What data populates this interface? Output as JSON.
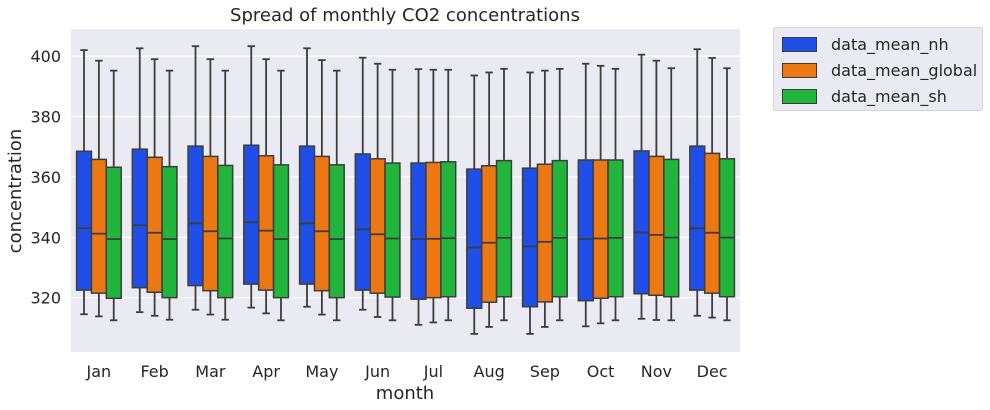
{
  "chart_data": {
    "type": "box",
    "title": "Spread of monthly CO2 concentrations",
    "xlabel": "month",
    "ylabel": "concentration",
    "ylim": [
      302,
      409
    ],
    "yticks": [
      320,
      340,
      360,
      380,
      400
    ],
    "grid": true,
    "legend_position": "outside-top-right",
    "categories": [
      "Jan",
      "Feb",
      "Mar",
      "Apr",
      "May",
      "Jun",
      "Jul",
      "Aug",
      "Sep",
      "Oct",
      "Nov",
      "Dec"
    ],
    "series": [
      {
        "name": "data_mean_nh",
        "color": "#1f4fe8",
        "boxes": [
          {
            "whislo": 314.5,
            "q1": 322.5,
            "med": 343.0,
            "q3": 368.5,
            "whishi": 402.0
          },
          {
            "whislo": 315.2,
            "q1": 323.3,
            "med": 344.0,
            "q3": 369.2,
            "whishi": 402.6
          },
          {
            "whislo": 316.0,
            "q1": 324.0,
            "med": 344.6,
            "q3": 370.2,
            "whishi": 403.3
          },
          {
            "whislo": 316.7,
            "q1": 324.5,
            "med": 345.0,
            "q3": 370.5,
            "whishi": 403.3
          },
          {
            "whislo": 317.0,
            "q1": 324.5,
            "med": 344.6,
            "q3": 370.2,
            "whishi": 402.6
          },
          {
            "whislo": 316.0,
            "q1": 322.5,
            "med": 342.6,
            "q3": 367.6,
            "whishi": 399.5
          },
          {
            "whislo": 311.0,
            "q1": 319.5,
            "med": 339.4,
            "q3": 364.6,
            "whishi": 395.7
          },
          {
            "whislo": 308.0,
            "q1": 316.5,
            "med": 336.6,
            "q3": 362.6,
            "whishi": 393.6
          },
          {
            "whislo": 308.0,
            "q1": 317.0,
            "med": 337.0,
            "q3": 362.9,
            "whishi": 394.6
          },
          {
            "whislo": 310.5,
            "q1": 319.0,
            "med": 339.4,
            "q3": 365.6,
            "whishi": 397.5
          },
          {
            "whislo": 313.0,
            "q1": 321.3,
            "med": 341.6,
            "q3": 368.6,
            "whishi": 400.5
          },
          {
            "whislo": 314.0,
            "q1": 322.5,
            "med": 343.0,
            "q3": 370.2,
            "whishi": 402.3
          }
        ]
      },
      {
        "name": "data_mean_global",
        "color": "#ec7814",
        "boxes": [
          {
            "whislo": 313.8,
            "q1": 321.5,
            "med": 341.2,
            "q3": 365.8,
            "whishi": 398.5
          },
          {
            "whislo": 314.0,
            "q1": 321.8,
            "med": 341.5,
            "q3": 366.5,
            "whishi": 399.0
          },
          {
            "whislo": 314.4,
            "q1": 322.3,
            "med": 342.0,
            "q3": 366.8,
            "whishi": 399.0
          },
          {
            "whislo": 314.8,
            "q1": 322.5,
            "med": 342.2,
            "q3": 367.0,
            "whishi": 399.0
          },
          {
            "whislo": 314.4,
            "q1": 322.3,
            "med": 342.0,
            "q3": 366.8,
            "whishi": 398.7
          },
          {
            "whislo": 313.6,
            "q1": 321.5,
            "med": 341.0,
            "q3": 366.0,
            "whishi": 397.5
          },
          {
            "whislo": 311.8,
            "q1": 320.0,
            "med": 339.5,
            "q3": 364.8,
            "whishi": 395.5
          },
          {
            "whislo": 310.3,
            "q1": 318.5,
            "med": 338.2,
            "q3": 363.7,
            "whishi": 394.6
          },
          {
            "whislo": 310.3,
            "q1": 318.6,
            "med": 338.5,
            "q3": 364.2,
            "whishi": 395.2
          },
          {
            "whislo": 311.5,
            "q1": 319.8,
            "med": 339.6,
            "q3": 365.6,
            "whishi": 396.8
          },
          {
            "whislo": 312.6,
            "q1": 320.8,
            "med": 340.8,
            "q3": 366.8,
            "whishi": 398.5
          },
          {
            "whislo": 313.4,
            "q1": 321.5,
            "med": 341.5,
            "q3": 367.8,
            "whishi": 399.4
          }
        ]
      },
      {
        "name": "data_mean_sh",
        "color": "#22b53c",
        "boxes": [
          {
            "whislo": 312.5,
            "q1": 319.8,
            "med": 339.4,
            "q3": 363.2,
            "whishi": 395.2
          },
          {
            "whislo": 312.7,
            "q1": 320.0,
            "med": 339.4,
            "q3": 363.4,
            "whishi": 395.2
          },
          {
            "whislo": 312.7,
            "q1": 320.0,
            "med": 339.6,
            "q3": 363.8,
            "whishi": 395.2
          },
          {
            "whislo": 312.5,
            "q1": 320.0,
            "med": 339.4,
            "q3": 364.0,
            "whishi": 395.2
          },
          {
            "whislo": 312.5,
            "q1": 320.0,
            "med": 339.4,
            "q3": 364.0,
            "whishi": 395.2
          },
          {
            "whislo": 312.5,
            "q1": 320.2,
            "med": 339.6,
            "q3": 364.6,
            "whishi": 395.5
          },
          {
            "whislo": 312.5,
            "q1": 320.3,
            "med": 339.7,
            "q3": 365.0,
            "whishi": 395.5
          },
          {
            "whislo": 312.5,
            "q1": 320.3,
            "med": 339.8,
            "q3": 365.4,
            "whishi": 395.8
          },
          {
            "whislo": 312.5,
            "q1": 320.3,
            "med": 339.8,
            "q3": 365.4,
            "whishi": 395.8
          },
          {
            "whislo": 312.5,
            "q1": 320.3,
            "med": 339.8,
            "q3": 365.6,
            "whishi": 395.8
          },
          {
            "whislo": 312.5,
            "q1": 320.3,
            "med": 339.9,
            "q3": 365.8,
            "whishi": 396.0
          },
          {
            "whislo": 312.5,
            "q1": 320.3,
            "med": 339.9,
            "q3": 366.0,
            "whishi": 396.0
          }
        ]
      }
    ]
  }
}
